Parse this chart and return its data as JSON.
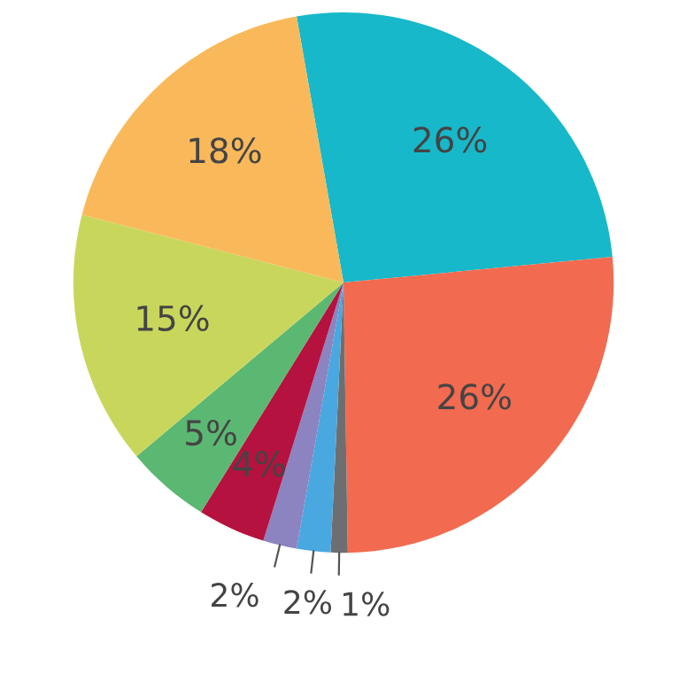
{
  "chart_data": {
    "type": "pie",
    "categories": [
      null,
      null,
      null,
      null,
      null,
      null,
      null,
      null,
      null
    ],
    "values": [
      26,
      26,
      1,
      2,
      2,
      4,
      5,
      15,
      18
    ],
    "colors": [
      "#17b8c9",
      "#f26a50",
      "#6d6e70",
      "#4aa8e0",
      "#8b84c0",
      "#b5123f",
      "#5bb872",
      "#c9d65c",
      "#f9b95a"
    ],
    "value_labels": [
      "26%",
      "26%",
      "1%",
      "2%",
      "2%",
      "4%",
      "5%",
      "15%",
      "18%"
    ]
  }
}
